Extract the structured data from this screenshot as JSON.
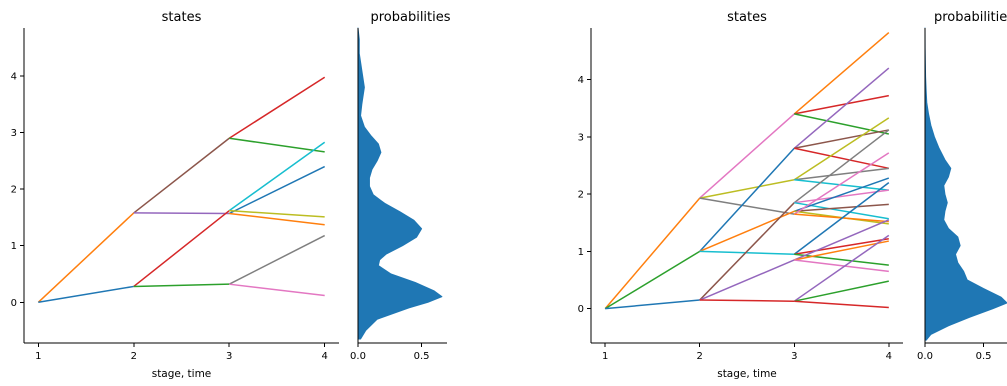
{
  "chart_data": [
    {
      "type": "line",
      "title": "states",
      "xlabel": "stage, time",
      "ylabel": "",
      "x_ticks": [
        "1",
        "2",
        "3",
        "4"
      ],
      "y_ticks": [
        "0",
        "1",
        "2",
        "3",
        "4"
      ],
      "xlim": [
        0.85,
        4.15
      ],
      "ylim": [
        -0.72,
        4.85
      ],
      "grid": false,
      "segments": [
        {
          "from": [
            1,
            0
          ],
          "to": [
            2,
            1.58
          ],
          "color": "#ff7f0e"
        },
        {
          "from": [
            1,
            0
          ],
          "to": [
            2,
            0.28
          ],
          "color": "#1f77b4"
        },
        {
          "from": [
            2,
            1.58
          ],
          "to": [
            3,
            2.9
          ],
          "color": "#8c564b"
        },
        {
          "from": [
            2,
            1.58
          ],
          "to": [
            3,
            1.57
          ],
          "color": "#9467bd"
        },
        {
          "from": [
            2,
            0.28
          ],
          "to": [
            3,
            1.62
          ],
          "color": "#d62728"
        },
        {
          "from": [
            2,
            0.28
          ],
          "to": [
            3,
            0.32
          ],
          "color": "#2ca02c"
        },
        {
          "from": [
            3,
            2.9
          ],
          "to": [
            4,
            3.98
          ],
          "color": "#d62728"
        },
        {
          "from": [
            3,
            2.9
          ],
          "to": [
            4,
            2.66
          ],
          "color": "#2ca02c"
        },
        {
          "from": [
            3,
            1.62
          ],
          "to": [
            4,
            2.83
          ],
          "color": "#17becf"
        },
        {
          "from": [
            3,
            1.57
          ],
          "to": [
            4,
            2.4
          ],
          "color": "#1f77b4"
        },
        {
          "from": [
            3,
            1.62
          ],
          "to": [
            4,
            1.51
          ],
          "color": "#bcbd22"
        },
        {
          "from": [
            3,
            1.57
          ],
          "to": [
            4,
            1.37
          ],
          "color": "#ff7f0e"
        },
        {
          "from": [
            3,
            0.32
          ],
          "to": [
            4,
            1.18
          ],
          "color": "#7f7f7f"
        },
        {
          "from": [
            3,
            0.32
          ],
          "to": [
            4,
            0.12
          ],
          "color": "#e377c2"
        }
      ]
    },
    {
      "type": "area",
      "title": "probabilities",
      "x_ticks": [
        "0.0",
        "0.5"
      ],
      "xlim": [
        0,
        0.7
      ],
      "ylim": [
        -0.72,
        4.85
      ],
      "color": "#1f77b4",
      "density": {
        "y": [
          -0.65,
          -0.5,
          -0.3,
          -0.1,
          0.0,
          0.1,
          0.2,
          0.35,
          0.5,
          0.65,
          0.75,
          0.85,
          1.0,
          1.15,
          1.3,
          1.45,
          1.6,
          1.75,
          1.9,
          2.05,
          2.2,
          2.35,
          2.5,
          2.65,
          2.8,
          2.95,
          3.1,
          3.3,
          3.5,
          3.8,
          4.1,
          4.4,
          4.65,
          4.85
        ],
        "p": [
          0.02,
          0.06,
          0.15,
          0.4,
          0.55,
          0.66,
          0.6,
          0.45,
          0.26,
          0.16,
          0.17,
          0.22,
          0.35,
          0.46,
          0.5,
          0.44,
          0.33,
          0.21,
          0.12,
          0.09,
          0.09,
          0.11,
          0.15,
          0.18,
          0.16,
          0.1,
          0.05,
          0.02,
          0.03,
          0.05,
          0.03,
          0.01,
          0.01,
          0.0
        ]
      }
    },
    {
      "type": "line",
      "title": "states",
      "xlabel": "stage, time",
      "ylabel": "",
      "x_ticks": [
        "1",
        "2",
        "3",
        "4"
      ],
      "y_ticks": [
        "0",
        "1",
        "2",
        "3",
        "4"
      ],
      "xlim": [
        0.85,
        4.15
      ],
      "ylim": [
        -0.6,
        4.9
      ],
      "grid": false,
      "segments": [
        {
          "from": [
            1,
            0
          ],
          "to": [
            2,
            1.93
          ],
          "color": "#ff7f0e"
        },
        {
          "from": [
            1,
            0
          ],
          "to": [
            2,
            1.0
          ],
          "color": "#2ca02c"
        },
        {
          "from": [
            1,
            0
          ],
          "to": [
            2,
            0.15
          ],
          "color": "#1f77b4"
        },
        {
          "from": [
            2,
            1.93
          ],
          "to": [
            3,
            3.4
          ],
          "color": "#e377c2"
        },
        {
          "from": [
            2,
            1.93
          ],
          "to": [
            3,
            2.25
          ],
          "color": "#bcbd22"
        },
        {
          "from": [
            2,
            1.93
          ],
          "to": [
            3,
            1.65
          ],
          "color": "#7f7f7f"
        },
        {
          "from": [
            2,
            1.0
          ],
          "to": [
            3,
            2.8
          ],
          "color": "#1f77b4"
        },
        {
          "from": [
            2,
            1.0
          ],
          "to": [
            3,
            1.7
          ],
          "color": "#ff7f0e"
        },
        {
          "from": [
            2,
            1.0
          ],
          "to": [
            3,
            0.95
          ],
          "color": "#17becf"
        },
        {
          "from": [
            2,
            0.15
          ],
          "to": [
            3,
            1.85
          ],
          "color": "#8c564b"
        },
        {
          "from": [
            2,
            0.15
          ],
          "to": [
            3,
            0.85
          ],
          "color": "#9467bd"
        },
        {
          "from": [
            2,
            0.15
          ],
          "to": [
            3,
            0.13
          ],
          "color": "#d62728"
        },
        {
          "from": [
            3,
            3.4
          ],
          "to": [
            4,
            4.82
          ],
          "color": "#ff7f0e"
        },
        {
          "from": [
            3,
            3.4
          ],
          "to": [
            4,
            3.72
          ],
          "color": "#d62728"
        },
        {
          "from": [
            3,
            3.4
          ],
          "to": [
            4,
            3.05
          ],
          "color": "#2ca02c"
        },
        {
          "from": [
            3,
            2.8
          ],
          "to": [
            4,
            4.2
          ],
          "color": "#9467bd"
        },
        {
          "from": [
            3,
            2.8
          ],
          "to": [
            4,
            3.12
          ],
          "color": "#8c564b"
        },
        {
          "from": [
            3,
            2.8
          ],
          "to": [
            4,
            2.45
          ],
          "color": "#d62728"
        },
        {
          "from": [
            3,
            2.25
          ],
          "to": [
            4,
            3.33
          ],
          "color": "#bcbd22"
        },
        {
          "from": [
            3,
            2.25
          ],
          "to": [
            4,
            2.45
          ],
          "color": "#7f7f7f"
        },
        {
          "from": [
            3,
            2.25
          ],
          "to": [
            4,
            2.07
          ],
          "color": "#17becf"
        },
        {
          "from": [
            3,
            1.85
          ],
          "to": [
            4,
            3.12
          ],
          "color": "#7f7f7f"
        },
        {
          "from": [
            3,
            1.85
          ],
          "to": [
            4,
            2.07
          ],
          "color": "#e377c2"
        },
        {
          "from": [
            3,
            1.85
          ],
          "to": [
            4,
            1.57
          ],
          "color": "#17becf"
        },
        {
          "from": [
            3,
            1.7
          ],
          "to": [
            4,
            2.28
          ],
          "color": "#1f77b4"
        },
        {
          "from": [
            3,
            1.7
          ],
          "to": [
            4,
            1.82
          ],
          "color": "#8c564b"
        },
        {
          "from": [
            3,
            1.7
          ],
          "to": [
            4,
            1.48
          ],
          "color": "#bcbd22"
        },
        {
          "from": [
            3,
            1.65
          ],
          "to": [
            4,
            2.72
          ],
          "color": "#e377c2"
        },
        {
          "from": [
            3,
            1.65
          ],
          "to": [
            4,
            1.52
          ],
          "color": "#ff7f0e"
        },
        {
          "from": [
            3,
            0.95
          ],
          "to": [
            4,
            2.2
          ],
          "color": "#1f77b4"
        },
        {
          "from": [
            3,
            0.95
          ],
          "to": [
            4,
            1.22
          ],
          "color": "#d62728"
        },
        {
          "from": [
            3,
            0.95
          ],
          "to": [
            4,
            0.76
          ],
          "color": "#2ca02c"
        },
        {
          "from": [
            3,
            0.85
          ],
          "to": [
            4,
            1.55
          ],
          "color": "#9467bd"
        },
        {
          "from": [
            3,
            0.85
          ],
          "to": [
            4,
            1.18
          ],
          "color": "#ff7f0e"
        },
        {
          "from": [
            3,
            0.85
          ],
          "to": [
            4,
            0.65
          ],
          "color": "#e377c2"
        },
        {
          "from": [
            3,
            0.13
          ],
          "to": [
            4,
            1.28
          ],
          "color": "#9467bd"
        },
        {
          "from": [
            3,
            0.13
          ],
          "to": [
            4,
            0.48
          ],
          "color": "#2ca02c"
        },
        {
          "from": [
            3,
            0.13
          ],
          "to": [
            4,
            0.02
          ],
          "color": "#d62728"
        }
      ]
    },
    {
      "type": "area",
      "title": "probabilities",
      "x_ticks": [
        "0.0",
        "0.5"
      ],
      "xlim": [
        0,
        0.7
      ],
      "ylim": [
        -0.6,
        4.9
      ],
      "color": "#1f77b4",
      "density": {
        "y": [
          -0.55,
          -0.45,
          -0.3,
          -0.15,
          0.0,
          0.1,
          0.2,
          0.35,
          0.5,
          0.65,
          0.8,
          0.95,
          1.1,
          1.25,
          1.4,
          1.55,
          1.7,
          1.85,
          2.0,
          2.15,
          2.3,
          2.45,
          2.6,
          2.8,
          3.0,
          3.2,
          3.4,
          3.6,
          3.8,
          4.05,
          4.3,
          4.55,
          4.9
        ],
        "p": [
          0.01,
          0.05,
          0.2,
          0.38,
          0.58,
          0.7,
          0.65,
          0.5,
          0.36,
          0.33,
          0.28,
          0.26,
          0.3,
          0.28,
          0.2,
          0.16,
          0.17,
          0.19,
          0.17,
          0.16,
          0.2,
          0.22,
          0.17,
          0.12,
          0.08,
          0.05,
          0.03,
          0.015,
          0.01,
          0.005,
          0.003,
          0.001,
          0.0
        ]
      }
    }
  ]
}
